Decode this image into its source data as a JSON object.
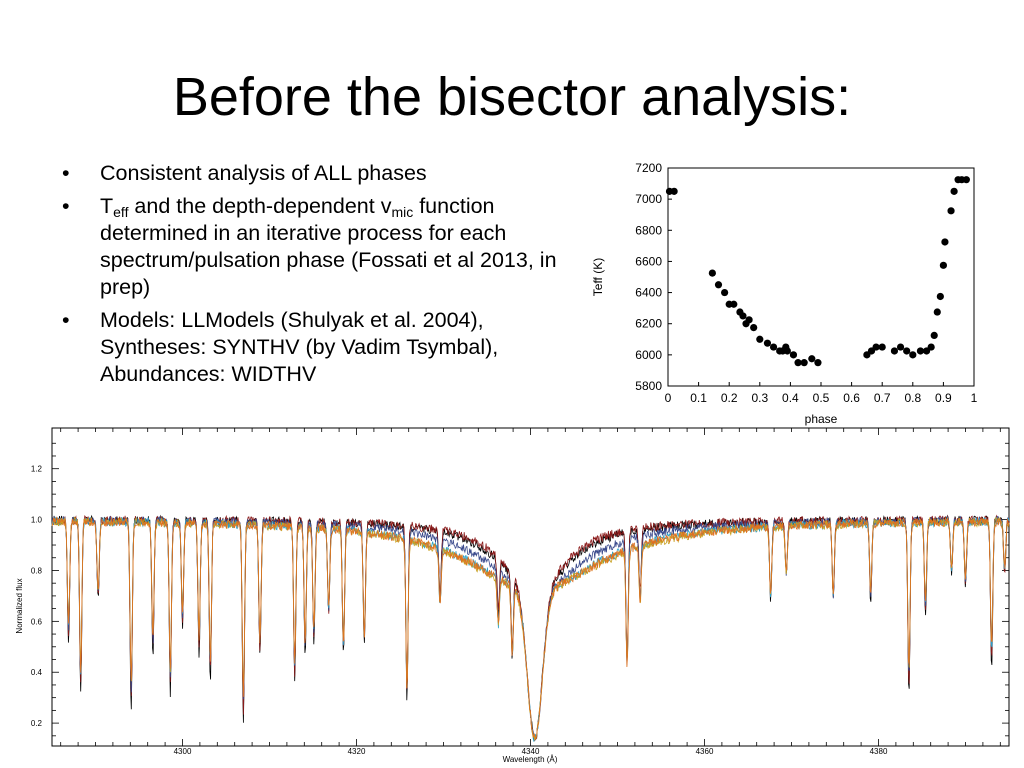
{
  "slide": {
    "title": "Before the bisector analysis:",
    "bullets": [
      {
        "text": "Consistent analysis of ALL phases"
      },
      {
        "t": "T",
        "t_sub": "eff",
        "mid": " and the depth-dependent v",
        "v_sub": "mic",
        "rest": " function determined in an iterative process for each spectrum/pulsation phase (Fossati et al 2013, in prep)"
      },
      {
        "line1": "Models: LLModels (Shulyak et al. 2004),",
        "line2": "Syntheses: SYNTHV (by Vadim Tsymbal),",
        "line3": "Abundances: WIDTHV"
      }
    ],
    "bullet_symbol": "•"
  },
  "chart_data": [
    {
      "type": "scatter",
      "xlabel": "phase",
      "ylabel": "Teff (K)",
      "xlim": [
        0,
        1
      ],
      "ylim": [
        5800,
        7200
      ],
      "xticks": [
        "0",
        "0.1",
        "0.2",
        "0.3",
        "0.4",
        "0.5",
        "0.6",
        "0.7",
        "0.8",
        "0.9",
        "1"
      ],
      "yticks": [
        "5800",
        "6000",
        "6200",
        "6400",
        "6600",
        "6800",
        "7000",
        "7200"
      ],
      "marker_color": "#000000",
      "points": [
        [
          0.005,
          7050
        ],
        [
          0.02,
          7050
        ],
        [
          0.145,
          6525
        ],
        [
          0.165,
          6450
        ],
        [
          0.185,
          6400
        ],
        [
          0.2,
          6325
        ],
        [
          0.215,
          6325
        ],
        [
          0.235,
          6275
        ],
        [
          0.245,
          6250
        ],
        [
          0.255,
          6200
        ],
        [
          0.265,
          6225
        ],
        [
          0.28,
          6175
        ],
        [
          0.3,
          6100
        ],
        [
          0.325,
          6075
        ],
        [
          0.345,
          6050
        ],
        [
          0.365,
          6025
        ],
        [
          0.375,
          6025
        ],
        [
          0.385,
          6050
        ],
        [
          0.39,
          6025
        ],
        [
          0.41,
          6000
        ],
        [
          0.425,
          5950
        ],
        [
          0.445,
          5950
        ],
        [
          0.47,
          5975
        ],
        [
          0.49,
          5950
        ],
        [
          0.65,
          6000
        ],
        [
          0.665,
          6025
        ],
        [
          0.68,
          6050
        ],
        [
          0.7,
          6050
        ],
        [
          0.74,
          6025
        ],
        [
          0.76,
          6050
        ],
        [
          0.78,
          6025
        ],
        [
          0.8,
          6000
        ],
        [
          0.825,
          6025
        ],
        [
          0.845,
          6025
        ],
        [
          0.86,
          6050
        ],
        [
          0.87,
          6125
        ],
        [
          0.88,
          6275
        ],
        [
          0.89,
          6375
        ],
        [
          0.9,
          6575
        ],
        [
          0.905,
          6725
        ],
        [
          0.925,
          6925
        ],
        [
          0.935,
          7050
        ],
        [
          0.948,
          7125
        ],
        [
          0.96,
          7125
        ],
        [
          0.975,
          7125
        ]
      ]
    },
    {
      "type": "line",
      "xlabel": "Wavelength (Å)",
      "ylabel": "Normalized flux",
      "xlim": [
        4285,
        4395
      ],
      "ylim": [
        0.11,
        1.36
      ],
      "xticks": [
        "4300",
        "4320",
        "4340",
        "4360",
        "4380"
      ],
      "yticks": [
        "0.2",
        "0.4",
        "0.6",
        "0.8",
        "1.0",
        "1.2"
      ],
      "balmer_line": {
        "center": 4340.5,
        "core_depth": 0.86
      },
      "absorption_lines": [
        [
          4286.9,
          0.45
        ],
        [
          4288.3,
          0.65
        ],
        [
          4290.3,
          0.3
        ],
        [
          4294.1,
          0.7
        ],
        [
          4296.6,
          0.5
        ],
        [
          4298.6,
          0.65
        ],
        [
          4300.0,
          0.4
        ],
        [
          4301.9,
          0.5
        ],
        [
          4303.2,
          0.6
        ],
        [
          4307.0,
          0.75
        ],
        [
          4308.9,
          0.5
        ],
        [
          4312.9,
          0.6
        ],
        [
          4314.1,
          0.5
        ],
        [
          4315.1,
          0.45
        ],
        [
          4316.8,
          0.35
        ],
        [
          4318.5,
          0.5
        ],
        [
          4320.9,
          0.45
        ],
        [
          4325.8,
          0.65
        ],
        [
          4329.6,
          0.25
        ],
        [
          4336.3,
          0.2
        ],
        [
          4337.9,
          0.3
        ],
        [
          4351.1,
          0.5
        ],
        [
          4352.6,
          0.25
        ],
        [
          4367.6,
          0.3
        ],
        [
          4369.4,
          0.2
        ],
        [
          4374.8,
          0.3
        ],
        [
          4379.1,
          0.3
        ],
        [
          4383.5,
          0.65
        ],
        [
          4385.4,
          0.35
        ],
        [
          4388.4,
          0.2
        ],
        [
          4390.0,
          0.25
        ],
        [
          4393.0,
          0.55
        ],
        [
          4394.5,
          0.2
        ]
      ],
      "series": [
        {
          "color": "#000000",
          "width_factor": 0.55,
          "depth_factor": 1.05
        },
        {
          "color": "#8b1a1a",
          "width_factor": 0.5,
          "depth_factor": 1.0
        },
        {
          "color": "#3a4a8c",
          "width_factor": 0.75,
          "depth_factor": 0.95
        },
        {
          "color": "#2aa0c8",
          "width_factor": 1.0,
          "depth_factor": 0.9
        },
        {
          "color": "#c8a020",
          "width_factor": 1.05,
          "depth_factor": 0.88
        },
        {
          "color": "#e07020",
          "width_factor": 1.02,
          "depth_factor": 0.9
        }
      ]
    }
  ]
}
